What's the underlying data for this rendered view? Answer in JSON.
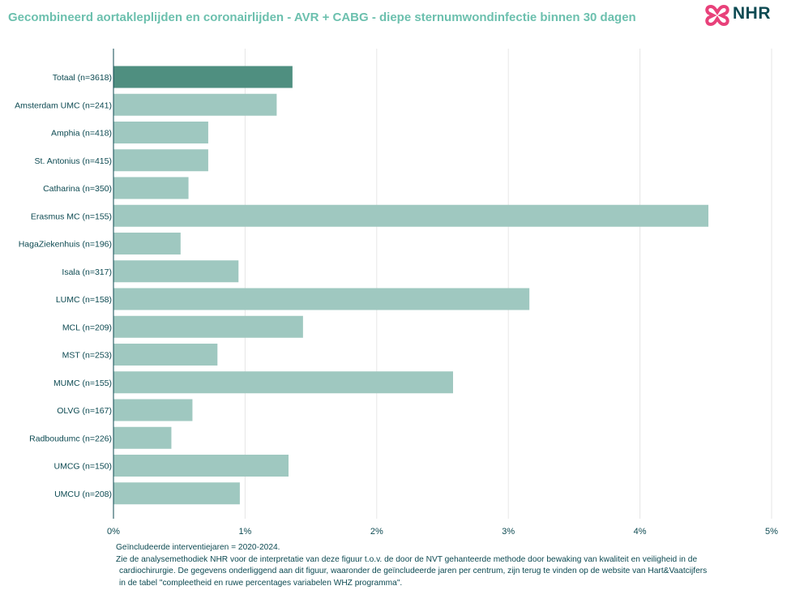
{
  "title": "Gecombineerd aortakleplijden en coronairlijden - AVR + CABG - diepe sternumwondinfectie binnen 30 dagen",
  "logo": {
    "text": "NHR",
    "icon": "nhr-cross-logo-icon"
  },
  "colors": {
    "highlight": "#4f8f80",
    "bar": "#9fc8c0",
    "title": "#6cc0ae",
    "text": "#0d4a52",
    "grid": "#e6e6e6"
  },
  "chart_data": {
    "type": "bar",
    "orientation": "horizontal",
    "categories": [
      "Totaal (n=3618)",
      "Amsterdam UMC (n=241)",
      "Amphia (n=418)",
      "St. Antonius (n=415)",
      "Catharina (n=350)",
      "Erasmus MC (n=155)",
      "HagaZiekenhuis (n=196)",
      "Isala (n=317)",
      "LUMC (n=158)",
      "MCL (n=209)",
      "MST (n=253)",
      "MUMC (n=155)",
      "OLVG (n=167)",
      "Radboudumc (n=226)",
      "UMCG (n=150)",
      "UMCU (n=208)"
    ],
    "values": [
      1.36,
      1.24,
      0.72,
      0.72,
      0.57,
      4.52,
      0.51,
      0.95,
      3.16,
      1.44,
      0.79,
      2.58,
      0.6,
      0.44,
      1.33,
      0.96
    ],
    "highlight_index": 0,
    "xlim": [
      0,
      5
    ],
    "xticks": [
      0,
      1,
      2,
      3,
      4,
      5
    ],
    "xtick_labels": [
      "0%",
      "1%",
      "2%",
      "3%",
      "4%",
      "5%"
    ],
    "grid": true
  },
  "footnote": {
    "line1": "Geïncludeerde interventiejaren = 2020-2024.",
    "line2": "Zie de analysemethodiek NHR voor de interpretatie van deze figuur t.o.v. de door de NVT gehanteerde methode door bewaking van kwaliteit en veiligheid in de",
    "line3": "cardiochirurgie. De gegevens onderliggend aan dit figuur, waaronder de geïncludeerde jaren per centrum, zijn terug te vinden op de website van Hart&Vaatcijfers",
    "line4": "in de tabel \"compleetheid en ruwe percentages variabelen WHZ programma\"."
  }
}
